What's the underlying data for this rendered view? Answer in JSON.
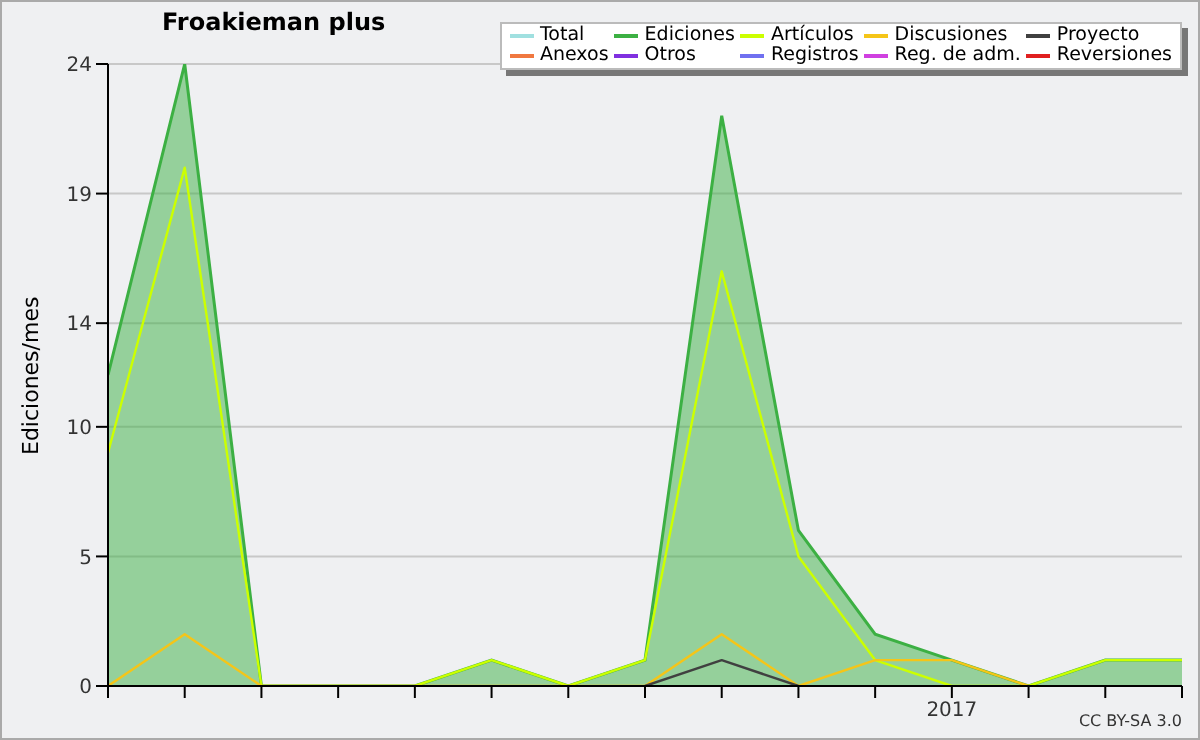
{
  "chart_data": {
    "type": "line",
    "title": "Froakieman plus",
    "ylabel": "Ediciones/mes",
    "categories": [
      null,
      null,
      null,
      null,
      null,
      null,
      null,
      null,
      null,
      null,
      null,
      "2017",
      null,
      null,
      null
    ],
    "series": [
      {
        "name": "Total",
        "color": "#a0e0e0",
        "values": [
          null,
          null,
          null,
          null,
          null,
          null,
          null,
          null,
          null,
          null,
          null,
          null,
          null,
          null,
          null
        ]
      },
      {
        "name": "Ediciones",
        "type": "area",
        "color": "#3cb043",
        "values": [
          12,
          24,
          0,
          0,
          0,
          1,
          0,
          1,
          22,
          6,
          2,
          1,
          0,
          1,
          1
        ]
      },
      {
        "name": "Artículos",
        "color": "#ccff00",
        "values": [
          9,
          20,
          0,
          0,
          0,
          1,
          0,
          1,
          16,
          5,
          1,
          0,
          0,
          1,
          1
        ]
      },
      {
        "name": "Discusiones",
        "color": "#f5c518",
        "values": [
          0,
          2,
          0,
          0,
          0,
          0,
          0,
          0,
          2,
          0,
          1,
          1,
          0,
          null,
          null
        ]
      },
      {
        "name": "Proyecto",
        "color": "#404040",
        "values": [
          null,
          null,
          null,
          null,
          null,
          null,
          null,
          0,
          1,
          0,
          null,
          null,
          null,
          null,
          null
        ]
      },
      {
        "name": "Anexos",
        "color": "#f07840",
        "values": [
          null,
          null,
          null,
          null,
          null,
          null,
          null,
          null,
          null,
          null,
          null,
          null,
          null,
          null,
          null
        ]
      },
      {
        "name": "Otros",
        "color": "#8030e0",
        "values": [
          null,
          null,
          null,
          null,
          null,
          null,
          null,
          null,
          null,
          null,
          null,
          null,
          null,
          null,
          null
        ]
      },
      {
        "name": "Registros",
        "color": "#7070f0",
        "values": [
          null,
          null,
          null,
          null,
          null,
          null,
          null,
          null,
          null,
          null,
          null,
          null,
          null,
          null,
          null
        ]
      },
      {
        "name": "Reg. de adm.",
        "color": "#d040e0",
        "values": [
          null,
          null,
          null,
          null,
          null,
          null,
          null,
          null,
          null,
          null,
          null,
          null,
          null,
          null,
          null
        ]
      },
      {
        "name": "Reversiones",
        "color": "#e02020",
        "values": [
          null,
          null,
          null,
          null,
          null,
          null,
          null,
          null,
          null,
          null,
          null,
          null,
          null,
          null,
          null
        ]
      }
    ],
    "ylim": [
      0,
      24
    ],
    "yticks": [
      0,
      5,
      10,
      14,
      19,
      24
    ],
    "grid": "y",
    "legend": "top right",
    "annotations": [
      "CC BY-SA 3.0"
    ]
  }
}
